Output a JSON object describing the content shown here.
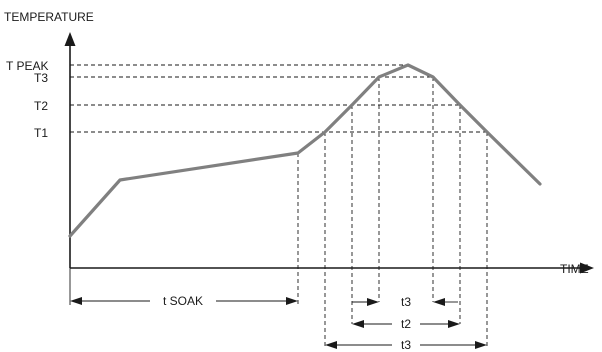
{
  "axes": {
    "y_label": "TEMPERATURE",
    "x_label": "TIME"
  },
  "levels": {
    "t_peak": "T PEAK",
    "t3": "T3",
    "t2": "T2",
    "t1": "T1"
  },
  "intervals": {
    "soak": "t SOAK",
    "inner": "t3",
    "middle": "t2",
    "outer": "t3"
  },
  "colors": {
    "profile": "#808080",
    "lines": "#1a1a1a"
  }
}
